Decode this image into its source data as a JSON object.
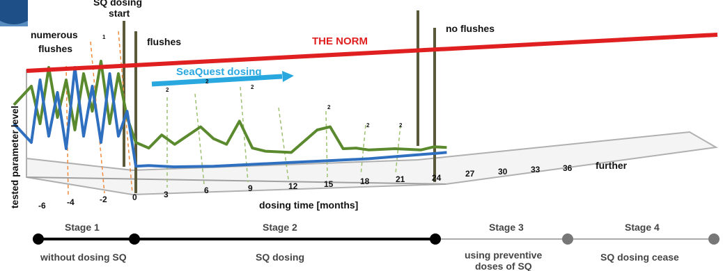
{
  "chart_data": {
    "type": "line",
    "xlabel": "dosing time [months]",
    "ylabel": "tested parameter level",
    "x_ticks": [
      "-6",
      "-4",
      "-2",
      "0",
      "3",
      "6",
      "9",
      "12",
      "15",
      "18",
      "21",
      "24",
      "27",
      "30",
      "33",
      "36",
      "further"
    ],
    "norm_label": "THE NORM",
    "dosing_arrow_label": "SeaQuest dosing",
    "annotations": {
      "sq_dosing_start": "SQ dosing start",
      "numerous_flushes": "numerous flushes",
      "flushes": "flushes",
      "no_flushes": "no flushes",
      "marker_1": "1",
      "marker_2": "2"
    },
    "series": [
      {
        "color": "#5b8a2e",
        "x": [
          -7,
          -6,
          -5.5,
          -5,
          -4.5,
          -4,
          -3.5,
          -3,
          -2.5,
          -2,
          -1.5,
          -1,
          -0.5,
          0,
          1,
          2,
          3,
          5,
          6,
          7,
          8,
          9,
          10,
          11,
          12,
          14,
          15,
          16,
          17,
          18,
          20,
          22,
          23,
          24
        ],
        "y": [
          0.55,
          0.7,
          0.4,
          0.85,
          0.45,
          0.75,
          0.35,
          0.8,
          0.5,
          0.9,
          0.4,
          0.8,
          0.45,
          0.25,
          0.2,
          0.3,
          0.22,
          0.35,
          0.25,
          0.2,
          0.38,
          0.16,
          0.13,
          0.12,
          0.11,
          0.28,
          0.3,
          0.12,
          0.12,
          0.1,
          0.1,
          0.08,
          0.1,
          0.09
        ]
      },
      {
        "color": "#2f6fbf",
        "x": [
          -7,
          -6,
          -5.5,
          -5,
          -4.5,
          -4,
          -3.5,
          -3,
          -2.5,
          -2,
          -1.5,
          -1,
          -0.5,
          0,
          1,
          3,
          6,
          9,
          12,
          15,
          18,
          21,
          24
        ],
        "y": [
          0.4,
          0.25,
          0.75,
          0.3,
          0.65,
          0.2,
          0.85,
          0.3,
          0.7,
          0.25,
          0.8,
          0.3,
          0.5,
          0.06,
          0.06,
          0.04,
          0.03,
          0.03,
          0.03,
          0.03,
          0.03,
          0.04,
          0.05
        ]
      }
    ]
  },
  "stages": [
    {
      "name": "Stage 1",
      "label": "without dosing SQ"
    },
    {
      "name": "Stage 2",
      "label": "SQ dosing"
    },
    {
      "name": "Stage 3",
      "label": "using preventive",
      "label2": "doses of SQ"
    },
    {
      "name": "Stage 4",
      "label": "SQ dosing cease"
    }
  ],
  "colors": {
    "norm": "#e02020",
    "arrow": "#29a8e0",
    "green": "#5b8a2e",
    "blue": "#2f6fbf",
    "dashed_orange": "#f08a3c",
    "dashed_green": "#9cc070"
  }
}
